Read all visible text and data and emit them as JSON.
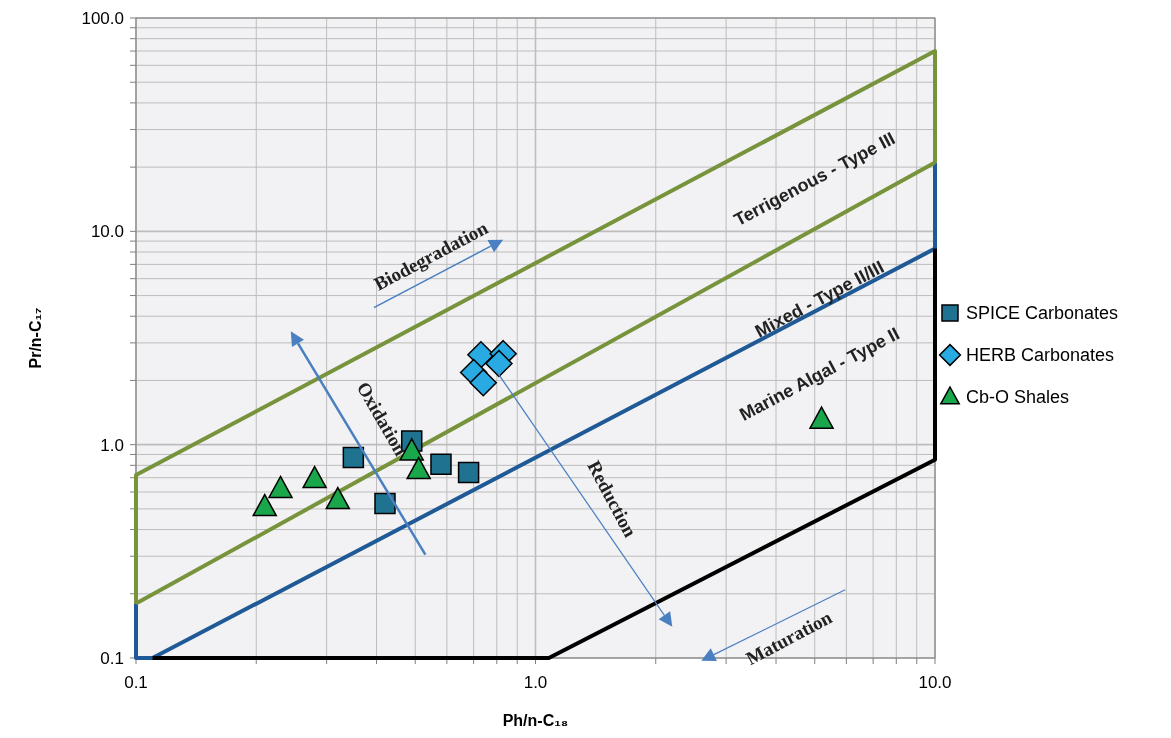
{
  "chart_data": {
    "type": "scatter",
    "xlabel": "Ph/n-C₁₈",
    "ylabel": "Pr/n-C₁₇",
    "log": "xy",
    "grid": true,
    "legend": "right",
    "xlim": [
      0.1,
      10
    ],
    "ylim": [
      0.1,
      100
    ],
    "xticks": [
      {
        "value": 0.1,
        "label": "0.1"
      },
      {
        "value": 1,
        "label": "1.0"
      },
      {
        "value": 10,
        "label": "10.0"
      }
    ],
    "yticks": [
      {
        "value": 0.1,
        "label": "0.1"
      },
      {
        "value": 1,
        "label": "1.0"
      },
      {
        "value": 10,
        "label": "10.0"
      },
      {
        "value": 100,
        "label": "100.0"
      }
    ],
    "series": [
      {
        "type": "line",
        "color": "#1f5a96",
        "x": [
          0.1,
          0.1,
          0.11,
          10,
          10
        ],
        "values": [
          0.18,
          0.1,
          0.1,
          8.3,
          21
        ]
      },
      {
        "type": "line",
        "color": "#000000",
        "x": [
          0.11,
          1.08,
          10,
          10
        ],
        "values": [
          0.1,
          0.1,
          0.85,
          8.3
        ]
      },
      {
        "type": "line",
        "color": "#77933c",
        "x": [
          0.1,
          0.1,
          10,
          10
        ],
        "values": [
          0.18,
          0.72,
          70,
          21
        ]
      },
      {
        "type": "line",
        "color": "#77933c",
        "x": [
          0.1,
          10
        ],
        "values": [
          0.18,
          21
        ]
      },
      {
        "name": "SPICE Carbonates",
        "color": "#1f7391",
        "marker": "square",
        "x": [
          0.35,
          0.49,
          0.58,
          0.42,
          0.68
        ],
        "values": [
          0.87,
          1.04,
          0.81,
          0.53,
          0.74
        ]
      },
      {
        "name": "HERB Carbonates",
        "color": "#29aae2",
        "marker": "diamond",
        "x": [
          0.73,
          0.83,
          0.81,
          0.7,
          0.74
        ],
        "values": [
          2.64,
          2.67,
          2.4,
          2.18,
          1.95
        ]
      },
      {
        "name": "Cb-O Shales",
        "color": "#1aa64a",
        "marker": "triangle",
        "x": [
          0.21,
          0.23,
          0.28,
          0.32,
          0.49,
          0.51,
          5.2
        ],
        "values": [
          0.51,
          0.62,
          0.69,
          0.55,
          0.93,
          0.76,
          1.31
        ]
      }
    ],
    "annotations": [
      "Terrigenous - Type III",
      "Mixed - Type II/III",
      "Marine Algal - Type II",
      "Biodegradation",
      "Oxidation",
      "Reduction",
      "Maturation"
    ]
  }
}
